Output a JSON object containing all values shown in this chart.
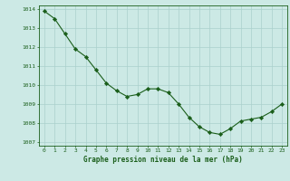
{
  "x": [
    0,
    1,
    2,
    3,
    4,
    5,
    6,
    7,
    8,
    9,
    10,
    11,
    12,
    13,
    14,
    15,
    16,
    17,
    18,
    19,
    20,
    21,
    22,
    23
  ],
  "y": [
    1013.9,
    1013.5,
    1012.7,
    1011.9,
    1011.5,
    1010.8,
    1010.1,
    1009.7,
    1009.4,
    1009.5,
    1009.8,
    1009.8,
    1009.6,
    1009.0,
    1008.3,
    1007.8,
    1007.5,
    1007.4,
    1007.7,
    1008.1,
    1008.2,
    1008.3,
    1008.6,
    1009.0
  ],
  "line_color": "#1a5e1a",
  "marker": "D",
  "marker_size": 2.2,
  "bg_color": "#cce9e5",
  "grid_color": "#aad0cc",
  "xlabel": "Graphe pression niveau de la mer (hPa)",
  "xlabel_color": "#1a5e1a",
  "tick_color": "#1a5e1a",
  "tick_label_color": "#1a5e1a",
  "ylim": [
    1006.8,
    1014.2
  ],
  "xlim": [
    -0.5,
    23.5
  ],
  "yticks": [
    1007,
    1008,
    1009,
    1010,
    1011,
    1012,
    1013,
    1014
  ],
  "xticks": [
    0,
    1,
    2,
    3,
    4,
    5,
    6,
    7,
    8,
    9,
    10,
    11,
    12,
    13,
    14,
    15,
    16,
    17,
    18,
    19,
    20,
    21,
    22,
    23
  ],
  "xtick_labels": [
    "0",
    "1",
    "2",
    "3",
    "4",
    "5",
    "6",
    "7",
    "8",
    "9",
    "10",
    "11",
    "12",
    "13",
    "14",
    "15",
    "16",
    "17",
    "18",
    "19",
    "20",
    "21",
    "22",
    "23"
  ]
}
